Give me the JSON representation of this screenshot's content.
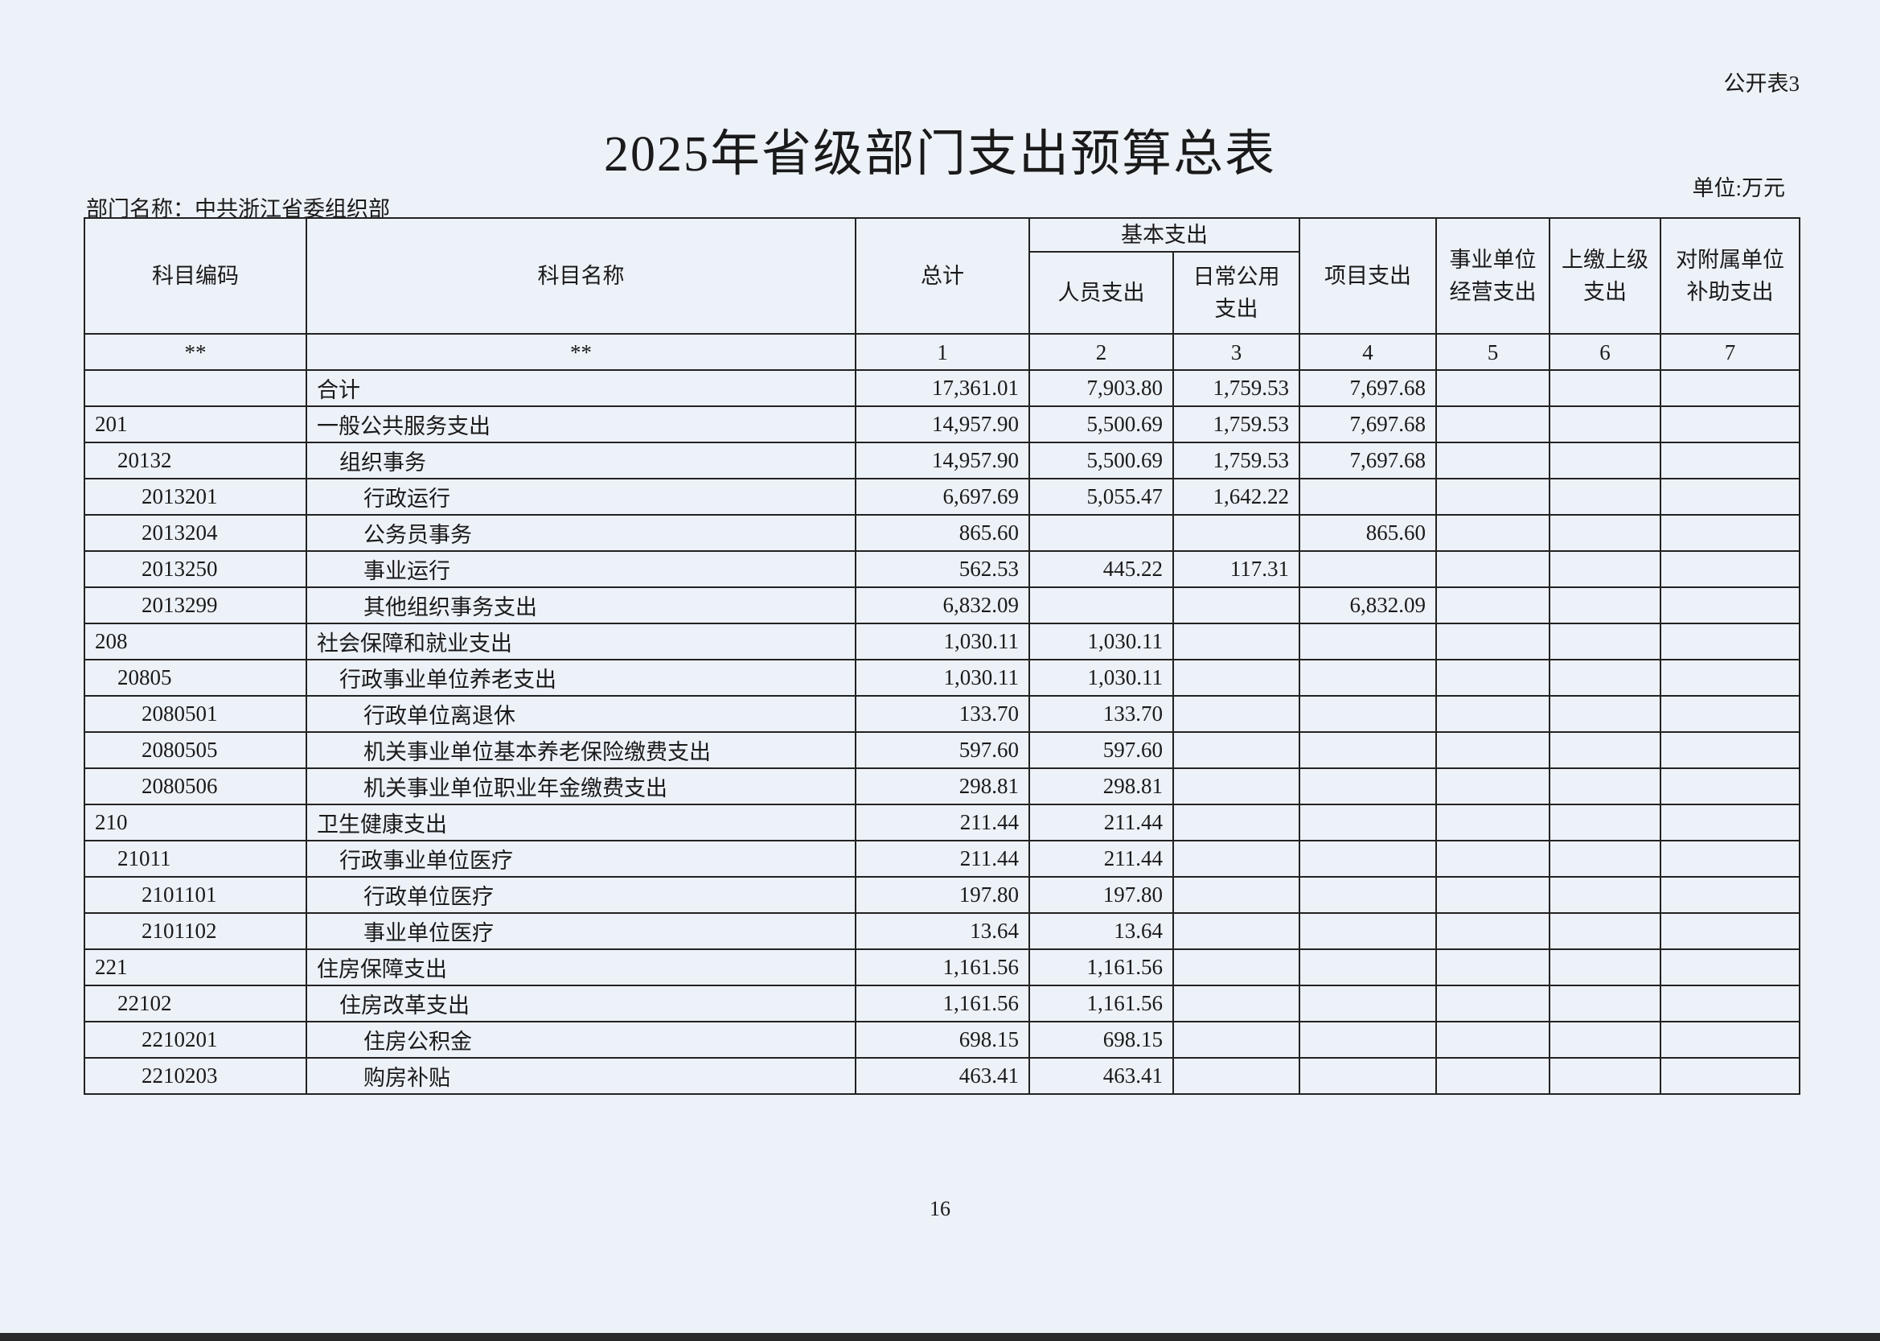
{
  "form_id": "公开表3",
  "title": "2025年省级部门支出预算总表",
  "unit": "单位:万元",
  "department": "部门名称：中共浙江省委组织部",
  "page_number": "16",
  "headers": {
    "code": "科目编码",
    "name": "科目名称",
    "total": "总计",
    "basic": "基本支出",
    "personnel": "人员支出",
    "daily_public": "日常公用支出",
    "project": "项目支出",
    "business": "事业单位经营支出",
    "upper": "上缴上级支出",
    "subsidiary": "对附属单位补助支出"
  },
  "index_row": [
    "**",
    "**",
    "1",
    "2",
    "3",
    "4",
    "5",
    "6",
    "7"
  ],
  "rows": [
    {
      "code": "",
      "name": "合计",
      "level": 1,
      "total": "17,361.01",
      "personnel": "7,903.80",
      "daily": "1,759.53",
      "project": "7,697.68"
    },
    {
      "code": "201",
      "name": "一般公共服务支出",
      "level": 1,
      "total": "14,957.90",
      "personnel": "5,500.69",
      "daily": "1,759.53",
      "project": "7,697.68"
    },
    {
      "code": "20132",
      "name": "组织事务",
      "level": 2,
      "total": "14,957.90",
      "personnel": "5,500.69",
      "daily": "1,759.53",
      "project": "7,697.68"
    },
    {
      "code": "2013201",
      "name": "行政运行",
      "level": 3,
      "total": "6,697.69",
      "personnel": "5,055.47",
      "daily": "1,642.22",
      "project": ""
    },
    {
      "code": "2013204",
      "name": "公务员事务",
      "level": 3,
      "total": "865.60",
      "personnel": "",
      "daily": "",
      "project": "865.60"
    },
    {
      "code": "2013250",
      "name": "事业运行",
      "level": 3,
      "total": "562.53",
      "personnel": "445.22",
      "daily": "117.31",
      "project": ""
    },
    {
      "code": "2013299",
      "name": "其他组织事务支出",
      "level": 3,
      "total": "6,832.09",
      "personnel": "",
      "daily": "",
      "project": "6,832.09"
    },
    {
      "code": "208",
      "name": "社会保障和就业支出",
      "level": 1,
      "total": "1,030.11",
      "personnel": "1,030.11",
      "daily": "",
      "project": ""
    },
    {
      "code": "20805",
      "name": "行政事业单位养老支出",
      "level": 2,
      "total": "1,030.11",
      "personnel": "1,030.11",
      "daily": "",
      "project": ""
    },
    {
      "code": "2080501",
      "name": "行政单位离退休",
      "level": 3,
      "total": "133.70",
      "personnel": "133.70",
      "daily": "",
      "project": ""
    },
    {
      "code": "2080505",
      "name": "机关事业单位基本养老保险缴费支出",
      "level": 3,
      "total": "597.60",
      "personnel": "597.60",
      "daily": "",
      "project": ""
    },
    {
      "code": "2080506",
      "name": "机关事业单位职业年金缴费支出",
      "level": 3,
      "total": "298.81",
      "personnel": "298.81",
      "daily": "",
      "project": ""
    },
    {
      "code": "210",
      "name": "卫生健康支出",
      "level": 1,
      "total": "211.44",
      "personnel": "211.44",
      "daily": "",
      "project": ""
    },
    {
      "code": "21011",
      "name": "行政事业单位医疗",
      "level": 2,
      "total": "211.44",
      "personnel": "211.44",
      "daily": "",
      "project": ""
    },
    {
      "code": "2101101",
      "name": "行政单位医疗",
      "level": 3,
      "total": "197.80",
      "personnel": "197.80",
      "daily": "",
      "project": ""
    },
    {
      "code": "2101102",
      "name": "事业单位医疗",
      "level": 3,
      "total": "13.64",
      "personnel": "13.64",
      "daily": "",
      "project": ""
    },
    {
      "code": "221",
      "name": "住房保障支出",
      "level": 1,
      "total": "1,161.56",
      "personnel": "1,161.56",
      "daily": "",
      "project": ""
    },
    {
      "code": "22102",
      "name": "住房改革支出",
      "level": 2,
      "total": "1,161.56",
      "personnel": "1,161.56",
      "daily": "",
      "project": ""
    },
    {
      "code": "2210201",
      "name": "住房公积金",
      "level": 3,
      "total": "698.15",
      "personnel": "698.15",
      "daily": "",
      "project": ""
    },
    {
      "code": "2210203",
      "name": "购房补贴",
      "level": 3,
      "total": "463.41",
      "personnel": "463.41",
      "daily": "",
      "project": ""
    }
  ]
}
